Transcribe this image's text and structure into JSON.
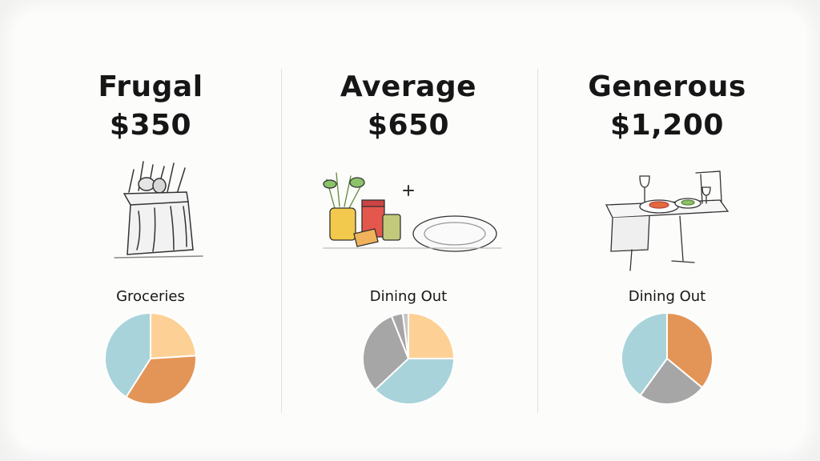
{
  "colors": {
    "peach": "#fdd196",
    "orange": "#e29556",
    "teal": "#a9d3da",
    "gray": "#a6a6a6",
    "lightgray": "#c4c4c4"
  },
  "tiers": [
    {
      "name": "Frugal",
      "amount": "$350",
      "illustration": "grocery-bag-icon",
      "pie_label": "Groceries"
    },
    {
      "name": "Average",
      "amount": "$650",
      "illustration": "ingredients-and-plate-icon",
      "pie_label": "Dining Out"
    },
    {
      "name": "Generous",
      "amount": "$1,200",
      "illustration": "restaurant-table-icon",
      "pie_label": "Dining Out"
    }
  ],
  "chart_data": [
    {
      "type": "pie",
      "title": "Groceries",
      "slices": [
        {
          "value": 24,
          "color": "#fdd196"
        },
        {
          "value": 35,
          "color": "#e29556"
        },
        {
          "value": 41,
          "color": "#a9d3da"
        }
      ]
    },
    {
      "type": "pie",
      "title": "Dining Out",
      "slices": [
        {
          "value": 25,
          "color": "#fdd196"
        },
        {
          "value": 38,
          "color": "#a9d3da"
        },
        {
          "value": 31,
          "color": "#a6a6a6"
        },
        {
          "value": 4,
          "color": "#a6a6a6"
        },
        {
          "value": 2,
          "color": "#c4c4c4"
        }
      ]
    },
    {
      "type": "pie",
      "title": "Dining Out",
      "slices": [
        {
          "value": 36,
          "color": "#e29556"
        },
        {
          "value": 24,
          "color": "#a6a6a6"
        },
        {
          "value": 40,
          "color": "#a9d3da"
        }
      ]
    }
  ]
}
